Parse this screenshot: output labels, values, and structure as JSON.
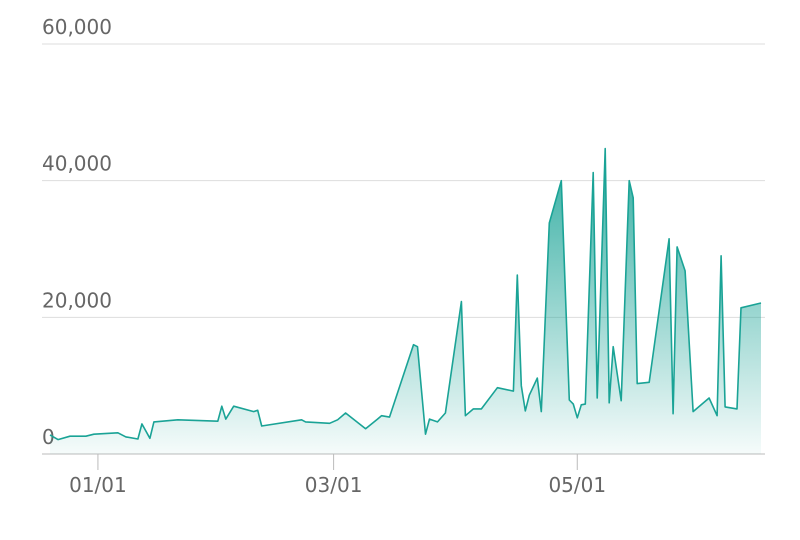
{
  "chart_data": {
    "type": "area",
    "x": [
      "12/20",
      "12/22",
      "12/25",
      "12/29",
      "12/31",
      "01/06",
      "01/08",
      "01/11",
      "01/12",
      "01/14",
      "01/15",
      "01/21",
      "01/31",
      "02/01",
      "02/02",
      "02/04",
      "02/09",
      "02/10",
      "02/11",
      "02/21",
      "02/22",
      "02/28",
      "03/02",
      "03/04",
      "03/09",
      "03/12",
      "03/13",
      "03/15",
      "03/21",
      "03/22",
      "03/24",
      "03/25",
      "03/27",
      "03/29",
      "04/02",
      "04/03",
      "04/05",
      "04/07",
      "04/11",
      "04/15",
      "04/16",
      "04/17",
      "04/18",
      "04/19",
      "04/21",
      "04/22",
      "04/24",
      "04/27",
      "04/29",
      "04/30",
      "05/01",
      "05/02",
      "05/03",
      "05/05",
      "05/06",
      "05/08",
      "05/09",
      "05/10",
      "05/12",
      "05/14",
      "05/15",
      "05/16",
      "05/19",
      "05/24",
      "05/25",
      "05/26",
      "05/28",
      "05/30",
      "06/03",
      "06/05",
      "06/06",
      "06/07",
      "06/10",
      "06/11",
      "06/16"
    ],
    "values": [
      2800,
      2100,
      2600,
      2600,
      2900,
      3100,
      2500,
      2200,
      4400,
      2300,
      4700,
      5000,
      4800,
      7000,
      5100,
      7000,
      6200,
      6400,
      4100,
      5000,
      4700,
      4500,
      5000,
      6000,
      3700,
      5100,
      5600,
      5400,
      16000,
      15700,
      2900,
      5100,
      4700,
      6000,
      22300,
      5600,
      6600,
      6600,
      9700,
      9200,
      26200,
      10000,
      6300,
      8600,
      11100,
      6200,
      33800,
      40000,
      7900,
      7300,
      5300,
      7200,
      7300,
      41200,
      8200,
      44700,
      7500,
      15700,
      7800,
      40000,
      37500,
      10300,
      10500,
      31500,
      5900,
      30300,
      26800,
      6200,
      8200,
      5600,
      29000,
      6900,
      6600,
      21400,
      22100
    ],
    "color": "#1aa396",
    "xlim": [
      "12/20",
      "06/17"
    ],
    "xticks": [
      "01/01",
      "03/01",
      "05/01"
    ],
    "ylim": [
      0,
      60000
    ],
    "yticks": [
      0,
      {
        "value": 20000,
        "label": "20,000"
      },
      {
        "value": 40000,
        "label": "40,000"
      },
      {
        "value": 60000,
        "label": "60,000"
      }
    ],
    "grid": true
  }
}
